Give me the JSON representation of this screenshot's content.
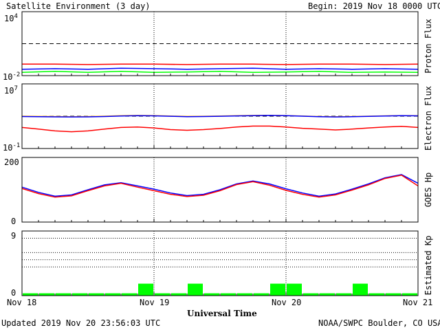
{
  "header": {
    "title": "Satellite Environment (3 day)",
    "begin": "Begin:  2019 Nov 18 0000 UTC"
  },
  "footer": {
    "updated": "Updated 2019 Nov 20 23:56:03 UTC",
    "credit": "NOAA/SWPC Boulder, CO USA"
  },
  "xaxis": {
    "label": "Universal Time",
    "ticks": [
      "Nov 18",
      "Nov 19",
      "Nov 20",
      "Nov 21"
    ]
  },
  "colors": {
    "red": "#ff0000",
    "blue": "#0000ff",
    "green": "#00ff00",
    "orange": "#ffa500",
    "axis": "#000000"
  },
  "chart_data": [
    {
      "type": "line",
      "ylabel": "Proton Flux",
      "scale": "log",
      "ylim": [
        0.01,
        10000
      ],
      "ytick_labels": {
        "top": "10",
        "top_exp": "4",
        "bottom": "10",
        "bottom_exp": "-2"
      },
      "threshold": 10,
      "x": [
        0,
        6,
        12,
        18,
        24,
        30,
        36,
        42,
        48,
        54,
        60,
        66,
        72
      ],
      "series": [
        {
          "color": "red",
          "values": [
            0.12,
            0.12,
            0.11,
            0.12,
            0.12,
            0.11,
            0.12,
            0.12,
            0.11,
            0.12,
            0.12,
            0.11,
            0.12
          ]
        },
        {
          "color": "blue",
          "values": [
            0.04,
            0.045,
            0.04,
            0.05,
            0.045,
            0.04,
            0.045,
            0.05,
            0.04,
            0.045,
            0.04,
            0.045,
            0.04
          ]
        },
        {
          "color": "green",
          "values": [
            0.02,
            0.025,
            0.02,
            0.025,
            0.02,
            0.022,
            0.025,
            0.02,
            0.022,
            0.025,
            0.02,
            0.022,
            0.02
          ]
        }
      ]
    },
    {
      "type": "line",
      "ylabel": "Electron Flux",
      "scale": "log",
      "ylim": [
        0.1,
        10000000
      ],
      "ytick_labels": {
        "top": "10",
        "top_exp": "7",
        "bottom": "10",
        "bottom_exp": "-1"
      },
      "threshold": 1000,
      "x": [
        0,
        3,
        6,
        9,
        12,
        15,
        18,
        21,
        24,
        27,
        30,
        33,
        36,
        39,
        42,
        45,
        48,
        51,
        54,
        57,
        60,
        63,
        66,
        69,
        72
      ],
      "series": [
        {
          "color": "orange",
          "values": [
            1000,
            950,
            900,
            870,
            900,
            1000,
            1150,
            1250,
            1200,
            1050,
            950,
            980,
            1050,
            1150,
            1250,
            1300,
            1200,
            1050,
            900,
            850,
            900,
            1000,
            1100,
            1200,
            1150
          ]
        },
        {
          "color": "blue",
          "values": [
            900,
            860,
            820,
            800,
            830,
            900,
            1050,
            1150,
            1100,
            980,
            880,
            900,
            980,
            1080,
            1180,
            1250,
            1150,
            1000,
            850,
            800,
            850,
            950,
            1050,
            1150,
            1100
          ]
        },
        {
          "color": "red",
          "values": [
            40,
            25,
            15,
            12,
            15,
            25,
            40,
            45,
            35,
            22,
            18,
            22,
            30,
            45,
            60,
            60,
            45,
            32,
            25,
            20,
            25,
            35,
            45,
            55,
            40
          ]
        }
      ]
    },
    {
      "type": "line",
      "ylabel": "GOES Hp",
      "scale": "linear",
      "ylim": [
        0,
        200
      ],
      "ytick_labels": {
        "top": "200",
        "bottom": "0"
      },
      "x": [
        0,
        3,
        6,
        9,
        12,
        15,
        18,
        21,
        24,
        27,
        30,
        33,
        36,
        39,
        42,
        45,
        48,
        51,
        54,
        57,
        60,
        63,
        66,
        69,
        72
      ],
      "series": [
        {
          "color": "blue",
          "values": [
            108,
            92,
            80,
            84,
            100,
            115,
            122,
            112,
            102,
            90,
            82,
            86,
            100,
            118,
            127,
            118,
            103,
            90,
            80,
            87,
            102,
            118,
            137,
            147,
            120
          ]
        },
        {
          "color": "red",
          "values": [
            104,
            88,
            77,
            81,
            97,
            112,
            120,
            108,
            97,
            86,
            79,
            83,
            97,
            116,
            125,
            114,
            98,
            86,
            77,
            84,
            99,
            115,
            135,
            145,
            112
          ]
        }
      ]
    },
    {
      "type": "bar",
      "ylabel": "Estimated Kp",
      "ylim": [
        0,
        9
      ],
      "ytick_labels": {
        "top": "9",
        "bottom": "0"
      },
      "gridlines": [
        4,
        5,
        6,
        8
      ],
      "color": "green",
      "x": [
        1.5,
        4.5,
        7.5,
        10.5,
        13.5,
        16.5,
        19.5,
        22.5,
        25.5,
        28.5,
        31.5,
        34.5,
        37.5,
        40.5,
        43.5,
        46.5,
        49.5,
        52.5,
        55.5,
        58.5,
        61.5,
        64.5,
        67.5,
        70.5
      ],
      "values": [
        0.33,
        0.33,
        0.33,
        0.33,
        0.33,
        0.33,
        0.33,
        1.67,
        0.33,
        0.33,
        1.67,
        0.33,
        0.33,
        0.33,
        0.33,
        1.67,
        1.67,
        0.33,
        0.33,
        0.33,
        1.67,
        0.33,
        0.33,
        0.33
      ]
    }
  ]
}
